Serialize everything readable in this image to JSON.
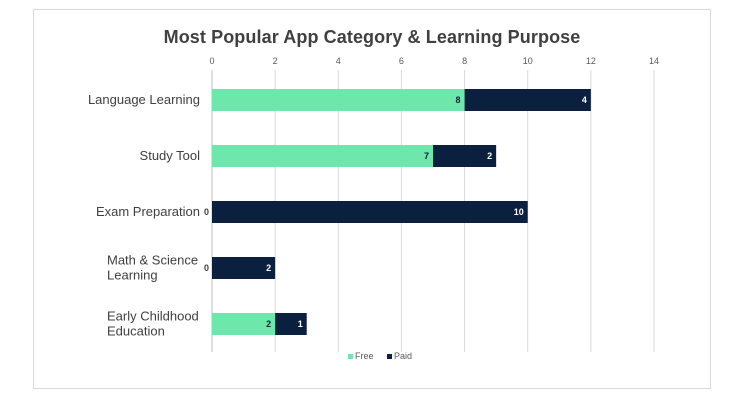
{
  "chart_data": {
    "type": "bar",
    "orientation": "horizontal",
    "stacked": true,
    "title": "Most Popular App Category & Learning Purpose",
    "categories": [
      "Language Learning",
      "Study Tool",
      "Exam Preparation",
      "Math & Science Learning",
      "Early Childhood Education"
    ],
    "category_lines": [
      [
        "Language Learning"
      ],
      [
        "Study Tool"
      ],
      [
        "Exam Preparation"
      ],
      [
        "Math & Science",
        "Learning"
      ],
      [
        "Early Childhood",
        "Education"
      ]
    ],
    "series": [
      {
        "name": "Free",
        "values": [
          8,
          7,
          0,
          0,
          2
        ],
        "color": "#6ee7ac"
      },
      {
        "name": "Paid",
        "values": [
          4,
          2,
          10,
          2,
          1
        ],
        "color": "#0b1f3f"
      }
    ],
    "xlim": [
      0,
      14
    ],
    "xticks": [
      0,
      2,
      4,
      6,
      8,
      10,
      12,
      14
    ],
    "grid": true,
    "legend": "bottom",
    "xlabel": "",
    "ylabel": ""
  }
}
